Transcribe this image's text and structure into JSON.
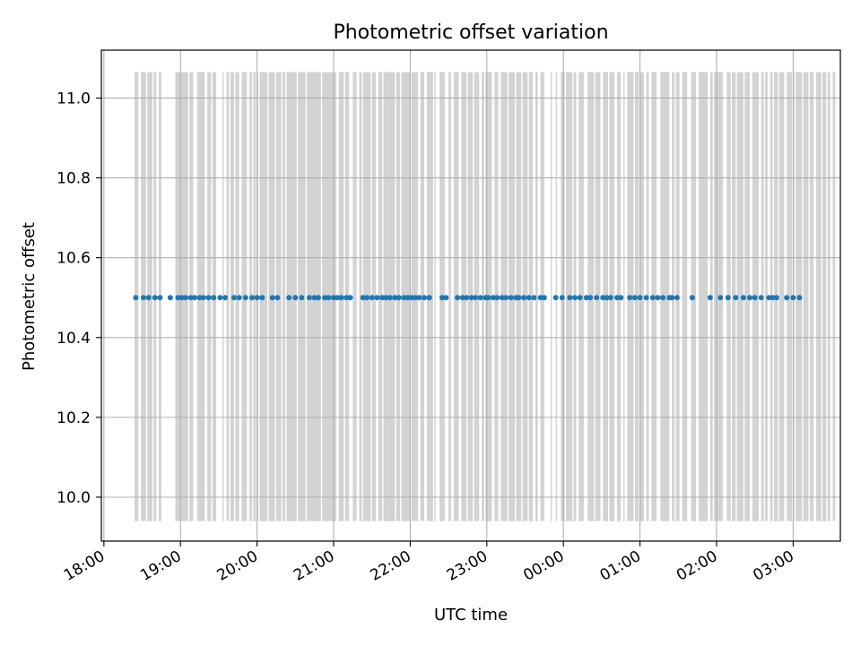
{
  "chart_data": {
    "type": "scatter",
    "title": "Photometric offset variation",
    "xlabel": "UTC time",
    "ylabel": "Photometric offset",
    "x_tick_labels": [
      "18:00",
      "19:00",
      "20:00",
      "21:00",
      "22:00",
      "23:00",
      "00:00",
      "01:00",
      "02:00",
      "03:00"
    ],
    "y_tick_labels": [
      "10.0",
      "10.2",
      "10.4",
      "10.6",
      "10.8",
      "11.0"
    ],
    "x_start": "18:00",
    "xlim": [
      "17:58",
      "27:37"
    ],
    "ylim": [
      9.89,
      11.12
    ],
    "grid": true,
    "marker_color": "#1f77b4",
    "band_color": "#d3d3d3",
    "band_y_range": [
      9.94,
      11.065
    ],
    "series": [
      {
        "y": 10.5,
        "x": [
          "18:25",
          "18:31",
          "18:35",
          "18:40",
          "18:44",
          "18:52",
          "18:58",
          "19:01",
          "19:04",
          "19:08",
          "19:11",
          "19:15",
          "19:18",
          "19:22",
          "19:26",
          "19:31",
          "19:35",
          "19:42",
          "19:46",
          "19:51",
          "19:56",
          "20:00",
          "20:04",
          "20:12",
          "20:16",
          "20:25",
          "20:30",
          "20:35",
          "20:41",
          "20:45",
          "20:48",
          "20:53",
          "20:56",
          "21:00",
          "21:03",
          "21:06",
          "21:10",
          "21:13",
          "21:23",
          "21:26",
          "21:30",
          "21:34",
          "21:38",
          "21:41",
          "21:44",
          "21:48",
          "21:51",
          "21:55",
          "21:58",
          "22:01",
          "22:04",
          "22:07",
          "22:11",
          "22:15",
          "22:25",
          "22:28",
          "22:37",
          "22:41",
          "22:44",
          "22:48",
          "22:51",
          "22:55",
          "22:59",
          "23:01",
          "23:05",
          "23:08",
          "23:12",
          "23:15",
          "23:19",
          "23:23",
          "23:25",
          "23:29",
          "23:33",
          "23:37",
          "23:42",
          "23:45",
          "23:54",
          "23:59",
          "24:05",
          "24:09",
          "24:13",
          "24:18",
          "24:21",
          "24:26",
          "24:31",
          "24:34",
          "24:37",
          "24:42",
          "24:45",
          "24:52",
          "24:56",
          "25:00",
          "25:05",
          "25:10",
          "25:14",
          "25:18",
          "25:23",
          "25:25",
          "25:29",
          "25:41",
          "25:55",
          "26:03",
          "26:09",
          "26:15",
          "26:21",
          "26:26",
          "26:30",
          "26:35",
          "26:41",
          "26:44",
          "26:47",
          "26:55",
          "27:00",
          "27:05"
        ]
      }
    ],
    "bands": [
      [
        "18:24",
        "18:27"
      ],
      [
        "18:29",
        "18:33"
      ],
      [
        "18:34",
        "18:38"
      ],
      [
        "18:39",
        "18:41"
      ],
      [
        "18:43",
        "18:45"
      ],
      [
        "18:56",
        "19:06"
      ],
      [
        "19:07",
        "19:10"
      ],
      [
        "19:13",
        "19:19"
      ],
      [
        "19:21",
        "19:24"
      ],
      [
        "19:25",
        "19:28"
      ],
      [
        "19:33",
        "19:34"
      ],
      [
        "19:36",
        "19:38"
      ],
      [
        "19:39",
        "19:42"
      ],
      [
        "19:43",
        "19:46"
      ],
      [
        "19:48",
        "19:52"
      ],
      [
        "19:54",
        "19:56"
      ],
      [
        "19:57",
        "19:59"
      ],
      [
        "20:00",
        "20:01"
      ],
      [
        "20:02",
        "20:08"
      ],
      [
        "20:09",
        "20:14"
      ],
      [
        "20:15",
        "20:19"
      ],
      [
        "20:20",
        "20:22"
      ],
      [
        "20:23",
        "20:31"
      ],
      [
        "20:32",
        "20:38"
      ],
      [
        "20:39",
        "20:50"
      ],
      [
        "20:51",
        "21:02"
      ],
      [
        "21:04",
        "21:08"
      ],
      [
        "21:09",
        "21:12"
      ],
      [
        "21:15",
        "21:18"
      ],
      [
        "21:20",
        "21:22"
      ],
      [
        "21:23",
        "21:29"
      ],
      [
        "21:30",
        "21:33"
      ],
      [
        "21:35",
        "21:38"
      ],
      [
        "21:39",
        "21:48"
      ],
      [
        "21:49",
        "21:52"
      ],
      [
        "21:53",
        "22:00"
      ],
      [
        "22:01",
        "22:06"
      ],
      [
        "22:08",
        "22:11"
      ],
      [
        "22:13",
        "22:18"
      ],
      [
        "22:19",
        "22:20"
      ],
      [
        "22:23",
        "22:27"
      ],
      [
        "22:30",
        "22:32"
      ],
      [
        "22:34",
        "22:38"
      ],
      [
        "22:40",
        "22:44"
      ],
      [
        "22:45",
        "22:49"
      ],
      [
        "22:50",
        "22:54"
      ],
      [
        "22:56",
        "22:58"
      ],
      [
        "22:59",
        "23:04"
      ],
      [
        "23:06",
        "23:09"
      ],
      [
        "23:11",
        "23:16"
      ],
      [
        "23:17",
        "23:22"
      ],
      [
        "23:23",
        "23:27"
      ],
      [
        "23:28",
        "23:32"
      ],
      [
        "23:33",
        "23:36"
      ],
      [
        "23:38",
        "23:40"
      ],
      [
        "23:42",
        "23:45"
      ],
      [
        "23:50",
        "23:51"
      ],
      [
        "23:54",
        "23:55"
      ],
      [
        "23:58",
        "24:01"
      ],
      [
        "24:02",
        "24:07"
      ],
      [
        "24:08",
        "24:10"
      ],
      [
        "24:12",
        "24:16"
      ],
      [
        "24:19",
        "24:24"
      ],
      [
        "24:25",
        "24:29"
      ],
      [
        "24:31",
        "24:35"
      ],
      [
        "24:36",
        "24:40"
      ],
      [
        "24:42",
        "24:45"
      ],
      [
        "24:47",
        "24:48"
      ],
      [
        "24:50",
        "24:55"
      ],
      [
        "24:56",
        "24:59"
      ],
      [
        "25:00",
        "25:03"
      ],
      [
        "25:05",
        "25:07"
      ],
      [
        "25:09",
        "25:13"
      ],
      [
        "25:16",
        "25:23"
      ],
      [
        "25:25",
        "25:27"
      ],
      [
        "25:28",
        "25:31"
      ],
      [
        "25:33",
        "25:37"
      ],
      [
        "25:40",
        "25:44"
      ],
      [
        "25:46",
        "25:53"
      ],
      [
        "25:55",
        "25:57"
      ],
      [
        "25:58",
        "26:05"
      ],
      [
        "26:08",
        "26:11"
      ],
      [
        "26:12",
        "26:15"
      ],
      [
        "26:16",
        "26:21"
      ],
      [
        "26:22",
        "26:26"
      ],
      [
        "26:28",
        "26:33"
      ],
      [
        "26:35",
        "26:37"
      ],
      [
        "26:38",
        "26:40"
      ],
      [
        "26:42",
        "26:44"
      ],
      [
        "26:45",
        "26:48"
      ],
      [
        "26:49",
        "26:53"
      ],
      [
        "26:55",
        "26:59"
      ],
      [
        "27:00",
        "27:01"
      ],
      [
        "27:02",
        "27:07"
      ],
      [
        "27:08",
        "27:12"
      ],
      [
        "27:13",
        "27:16"
      ],
      [
        "27:18",
        "27:22"
      ],
      [
        "27:23",
        "27:26"
      ],
      [
        "27:27",
        "27:29"
      ],
      [
        "27:31",
        "27:33"
      ]
    ]
  }
}
